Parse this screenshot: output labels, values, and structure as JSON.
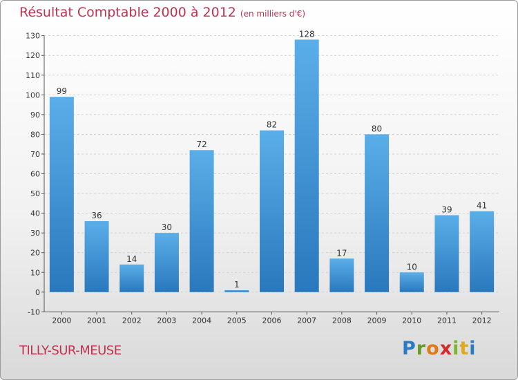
{
  "header": {
    "title": "Résultat Comptable 2000 à 2012",
    "subtitle": "(en milliers d'€)"
  },
  "footer": {
    "commune": "TILLY-SUR-MEUSE",
    "logo": "Proxiti"
  },
  "colors": {
    "bar": "#3b8fd6",
    "bar_light": "#5aaee8",
    "title": "#c0314d",
    "grid": "#d0d0d0"
  },
  "chart_data": {
    "type": "bar",
    "title": "Résultat Comptable 2000 à 2012",
    "subtitle": "(en milliers d'€)",
    "categories": [
      "2000",
      "2001",
      "2002",
      "2003",
      "2004",
      "2005",
      "2006",
      "2007",
      "2008",
      "2009",
      "2010",
      "2011",
      "2012"
    ],
    "values": [
      99,
      36,
      14,
      30,
      72,
      1,
      82,
      128,
      17,
      80,
      10,
      39,
      41
    ],
    "xlabel": "",
    "ylabel": "",
    "ylim": [
      -10,
      130
    ],
    "yticks": [
      -10,
      0,
      10,
      20,
      30,
      40,
      50,
      60,
      70,
      80,
      90,
      100,
      110,
      120,
      130
    ],
    "grid": true,
    "legend": "none"
  }
}
